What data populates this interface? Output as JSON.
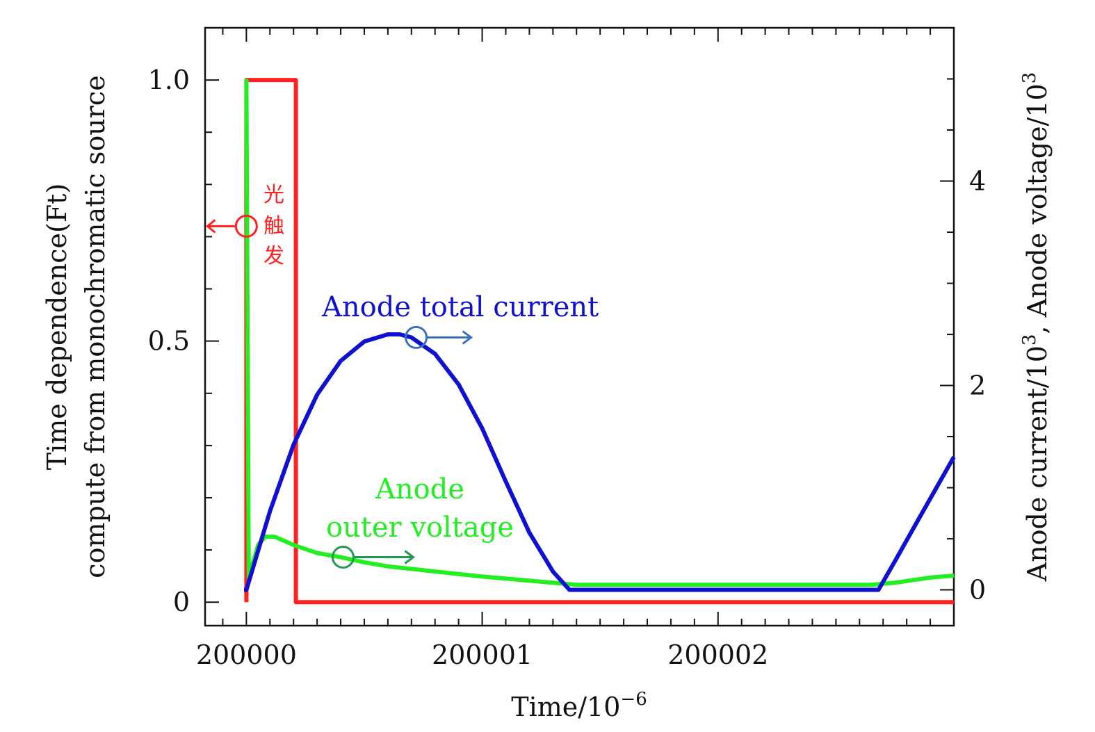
{
  "chart_data": {
    "type": "line",
    "xlabel": "Time/10",
    "xlabel_exp": "−6",
    "ylabel_left_line1": "Time dependence(Ft)",
    "ylabel_left_line2": "compute from monochromatic source",
    "ylabel_right_a": "Anode current/10",
    "ylabel_right_exp_a": "3",
    "ylabel_right_b": ", Anode voltage/10",
    "ylabel_right_exp_b": "3",
    "x_range": [
      199999.825,
      200003.0
    ],
    "y_left_range": [
      -0.045,
      1.1
    ],
    "y_right_range": [
      -0.35,
      5.5
    ],
    "x_ticks": [
      200000,
      200001,
      200002
    ],
    "x_tick_labels": [
      "200000",
      "200001",
      "200002"
    ],
    "y_left_ticks": [
      0,
      0.5,
      1.0
    ],
    "y_left_tick_labels": [
      "0",
      "0.5",
      "1.0"
    ],
    "y_right_ticks": [
      0,
      2,
      4
    ],
    "y_right_tick_labels": [
      "0",
      "2",
      "4"
    ],
    "annotations": {
      "photo_trigger_chars": [
        "光",
        "触",
        "发"
      ],
      "anode_total_current": "Anode total current",
      "anode_outer_voltage_line1": "Anode",
      "anode_outer_voltage_line2": "outer voltage"
    },
    "colors": {
      "trigger": "#ff2020",
      "current": "#1010d0",
      "voltage": "#22ee22",
      "current_marker": "#3a6fc0",
      "voltage_marker": "#1f9a50"
    },
    "series": [
      {
        "name": "光触发",
        "axis": "left",
        "color": "#ff2020",
        "x": [
          200000.0,
          200000.0,
          200000.21,
          200000.21,
          200003.0
        ],
        "y": [
          0.0,
          1.0,
          1.0,
          0.0,
          0.0
        ]
      },
      {
        "name": "Anode total current",
        "axis": "right",
        "color": "#1010d0",
        "x": [
          199999.99,
          200000.0,
          200000.1,
          200000.2,
          200000.3,
          200000.4,
          200000.5,
          200000.6,
          200000.65,
          200000.7,
          200000.8,
          200000.9,
          200001.0,
          200001.1,
          200001.2,
          200001.3,
          200001.37,
          200002.68,
          200002.75,
          200002.85,
          200003.0
        ],
        "y": [
          0.0,
          0.0,
          0.77,
          1.42,
          1.91,
          2.24,
          2.43,
          2.5,
          2.5,
          2.47,
          2.31,
          2.01,
          1.58,
          1.06,
          0.56,
          0.18,
          0.0,
          0.0,
          0.28,
          0.69,
          1.3
        ]
      },
      {
        "name": "Anode outer voltage",
        "axis": "right",
        "color": "#22ee22",
        "x": [
          200000.0,
          200000.0,
          200000.01,
          200000.03,
          200000.05,
          200000.08,
          200000.12,
          200000.2,
          200000.3,
          200000.4,
          200000.5,
          200000.6,
          200000.8,
          200001.0,
          200001.2,
          200001.4,
          200001.8,
          200002.2,
          200002.65,
          200002.75,
          200002.9,
          200003.0
        ],
        "y": [
          5.0,
          5.0,
          0.12,
          0.28,
          0.44,
          0.52,
          0.52,
          0.44,
          0.36,
          0.32,
          0.27,
          0.23,
          0.18,
          0.13,
          0.09,
          0.05,
          0.05,
          0.05,
          0.05,
          0.07,
          0.12,
          0.14
        ]
      }
    ]
  }
}
